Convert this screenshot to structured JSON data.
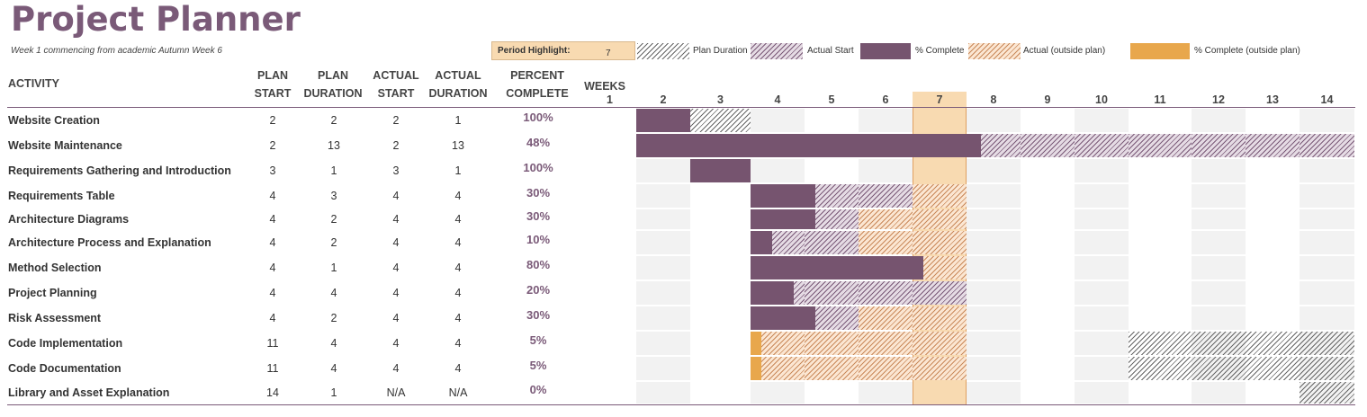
{
  "title": "Project Planner",
  "subtitle": "Week 1 commencing from academic Autumn Week 6",
  "period_highlight": {
    "label": "Period Highlight:",
    "value": "7"
  },
  "legend": [
    {
      "key": "plan_duration",
      "label": "Plan Duration"
    },
    {
      "key": "actual_start",
      "label": "Actual Start"
    },
    {
      "key": "percent_complete",
      "label": "% Complete"
    },
    {
      "key": "actual_outside_plan",
      "label": "Actual (outside plan)"
    },
    {
      "key": "percent_complete_outside_plan",
      "label": "% Complete (outside plan)"
    }
  ],
  "colors": {
    "title": "#7a5a78",
    "complete": "#76546f",
    "complete_outside": "#e8a74c",
    "highlight": "#f8dab1",
    "grid_gray": "#f2f2f2"
  },
  "headers": {
    "activity": "ACTIVITY",
    "plan_start": [
      "PLAN",
      "START"
    ],
    "plan_duration": [
      "PLAN",
      "DURATION"
    ],
    "actual_start": [
      "ACTUAL",
      "START"
    ],
    "actual_duration": [
      "ACTUAL",
      "DURATION"
    ],
    "percent_complete": [
      "PERCENT",
      "COMPLETE"
    ],
    "weeks": "WEEKS"
  },
  "weeks": [
    "1",
    "2",
    "3",
    "4",
    "5",
    "6",
    "7",
    "8",
    "9",
    "10",
    "11",
    "12",
    "13",
    "14"
  ],
  "activities": [
    {
      "name": "Website Creation",
      "plan_start": "2",
      "plan_duration": "2",
      "actual_start": "2",
      "actual_duration": "1",
      "percent": "100%",
      "pct": 1.0
    },
    {
      "name": "Website Maintenance",
      "plan_start": "2",
      "plan_duration": "13",
      "actual_start": "2",
      "actual_duration": "13",
      "percent": "48%",
      "pct": 0.48
    },
    {
      "name": "Requirements Gathering and Introduction",
      "plan_start": "3",
      "plan_duration": "1",
      "actual_start": "3",
      "actual_duration": "1",
      "percent": "100%",
      "pct": 1.0
    },
    {
      "name": "Requirements Table",
      "plan_start": "4",
      "plan_duration": "3",
      "actual_start": "4",
      "actual_duration": "4",
      "percent": "30%",
      "pct": 0.3
    },
    {
      "name": "Architecture Diagrams",
      "plan_start": "4",
      "plan_duration": "2",
      "actual_start": "4",
      "actual_duration": "4",
      "percent": "30%",
      "pct": 0.3
    },
    {
      "name": "Architecture Process and Explanation",
      "plan_start": "4",
      "plan_duration": "2",
      "actual_start": "4",
      "actual_duration": "4",
      "percent": "10%",
      "pct": 0.1
    },
    {
      "name": "Method Selection",
      "plan_start": "4",
      "plan_duration": "1",
      "actual_start": "4",
      "actual_duration": "4",
      "percent": "80%",
      "pct": 0.8
    },
    {
      "name": "Project Planning",
      "plan_start": "4",
      "plan_duration": "4",
      "actual_start": "4",
      "actual_duration": "4",
      "percent": "20%",
      "pct": 0.2
    },
    {
      "name": "Risk Assessment",
      "plan_start": "4",
      "plan_duration": "2",
      "actual_start": "4",
      "actual_duration": "4",
      "percent": "30%",
      "pct": 0.3
    },
    {
      "name": "Code Implementation",
      "plan_start": "11",
      "plan_duration": "4",
      "actual_start": "4",
      "actual_duration": "4",
      "percent": "5%",
      "pct": 0.05
    },
    {
      "name": "Code Documentation",
      "plan_start": "11",
      "plan_duration": "4",
      "actual_start": "4",
      "actual_duration": "4",
      "percent": "5%",
      "pct": 0.05
    },
    {
      "name": "Library and Asset Explanation",
      "plan_start": "14",
      "plan_duration": "1",
      "actual_start": "N/A",
      "actual_duration": "N/A",
      "percent": "0%",
      "pct": 0.0
    }
  ]
}
